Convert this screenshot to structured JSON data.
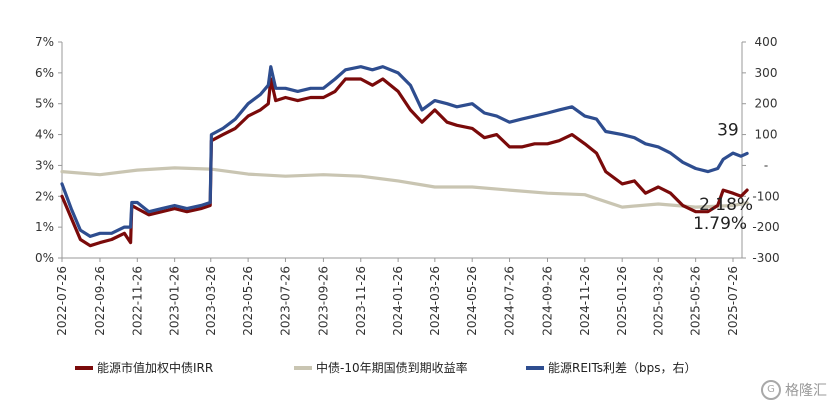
{
  "chart_data": {
    "type": "line",
    "x_ticks": [
      "2022-07-26",
      "2022-09-26",
      "2022-11-26",
      "2023-01-26",
      "2023-03-26",
      "2023-05-26",
      "2023-07-26",
      "2023-09-26",
      "2023-11-26",
      "2024-01-26",
      "2024-03-26",
      "2024-05-26",
      "2024-07-26",
      "2024-09-26",
      "2024-11-26",
      "2025-01-26",
      "2025-03-26",
      "2025-05-26",
      "2025-07-26"
    ],
    "y_left": {
      "min": 0,
      "max": 7,
      "ticks": [
        "0%",
        "1%",
        "2%",
        "3%",
        "4%",
        "5%",
        "6%",
        "7%"
      ]
    },
    "y_right": {
      "min": -300,
      "max": 400,
      "ticks": [
        "-300",
        "-200",
        "-100",
        "-",
        "100",
        "200",
        "300",
        "400"
      ]
    },
    "series": [
      {
        "name": "能源市值加权中债IRR",
        "axis": "left",
        "color": "#7a0a0a",
        "points": [
          [
            "2022-07-26",
            2.0
          ],
          [
            "2022-08-10",
            1.3
          ],
          [
            "2022-08-25",
            0.6
          ],
          [
            "2022-09-10",
            0.4
          ],
          [
            "2022-09-26",
            0.5
          ],
          [
            "2022-10-15",
            0.6
          ],
          [
            "2022-11-05",
            0.8
          ],
          [
            "2022-11-15",
            0.5
          ],
          [
            "2022-11-17",
            1.7
          ],
          [
            "2022-11-26",
            1.6
          ],
          [
            "2022-12-15",
            1.4
          ],
          [
            "2023-01-05",
            1.5
          ],
          [
            "2023-01-26",
            1.6
          ],
          [
            "2023-02-15",
            1.5
          ],
          [
            "2023-03-10",
            1.6
          ],
          [
            "2023-03-25",
            1.7
          ],
          [
            "2023-03-27",
            3.8
          ],
          [
            "2023-04-15",
            4.0
          ],
          [
            "2023-05-05",
            4.2
          ],
          [
            "2023-05-26",
            4.6
          ],
          [
            "2023-06-15",
            4.8
          ],
          [
            "2023-06-28",
            5.0
          ],
          [
            "2023-07-02",
            5.8
          ],
          [
            "2023-07-10",
            5.1
          ],
          [
            "2023-07-26",
            5.2
          ],
          [
            "2023-08-15",
            5.1
          ],
          [
            "2023-09-05",
            5.2
          ],
          [
            "2023-09-26",
            5.2
          ],
          [
            "2023-10-15",
            5.4
          ],
          [
            "2023-11-01",
            5.8
          ],
          [
            "2023-11-26",
            5.8
          ],
          [
            "2023-12-15",
            5.6
          ],
          [
            "2024-01-01",
            5.8
          ],
          [
            "2024-01-26",
            5.4
          ],
          [
            "2024-02-15",
            4.8
          ],
          [
            "2024-03-05",
            4.4
          ],
          [
            "2024-03-26",
            4.8
          ],
          [
            "2024-04-15",
            4.4
          ],
          [
            "2024-05-01",
            4.3
          ],
          [
            "2024-05-26",
            4.2
          ],
          [
            "2024-06-15",
            3.9
          ],
          [
            "2024-07-05",
            4.0
          ],
          [
            "2024-07-26",
            3.6
          ],
          [
            "2024-08-15",
            3.6
          ],
          [
            "2024-09-05",
            3.7
          ],
          [
            "2024-09-26",
            3.7
          ],
          [
            "2024-10-15",
            3.8
          ],
          [
            "2024-11-05",
            4.0
          ],
          [
            "2024-11-26",
            3.7
          ],
          [
            "2024-12-15",
            3.4
          ],
          [
            "2024-12-30",
            2.8
          ],
          [
            "2025-01-26",
            2.4
          ],
          [
            "2025-02-15",
            2.5
          ],
          [
            "2025-03-05",
            2.1
          ],
          [
            "2025-03-26",
            2.3
          ],
          [
            "2025-04-15",
            2.1
          ],
          [
            "2025-05-05",
            1.7
          ],
          [
            "2025-05-26",
            1.5
          ],
          [
            "2025-06-15",
            1.5
          ],
          [
            "2025-07-01",
            1.7
          ],
          [
            "2025-07-10",
            2.2
          ],
          [
            "2025-07-26",
            2.1
          ],
          [
            "2025-08-08",
            2.0
          ],
          [
            "2025-08-18",
            2.2
          ]
        ]
      },
      {
        "name": "中债-10年期国债到期收益率",
        "axis": "left",
        "color": "#c9c5b2",
        "points": [
          [
            "2022-07-26",
            2.8
          ],
          [
            "2022-09-26",
            2.7
          ],
          [
            "2022-11-26",
            2.85
          ],
          [
            "2023-01-26",
            2.92
          ],
          [
            "2023-03-26",
            2.88
          ],
          [
            "2023-05-26",
            2.72
          ],
          [
            "2023-07-26",
            2.65
          ],
          [
            "2023-09-26",
            2.7
          ],
          [
            "2023-11-26",
            2.65
          ],
          [
            "2024-01-26",
            2.5
          ],
          [
            "2024-03-26",
            2.3
          ],
          [
            "2024-05-26",
            2.3
          ],
          [
            "2024-07-26",
            2.2
          ],
          [
            "2024-09-26",
            2.1
          ],
          [
            "2024-11-26",
            2.05
          ],
          [
            "2025-01-26",
            1.65
          ],
          [
            "2025-03-26",
            1.75
          ],
          [
            "2025-05-26",
            1.65
          ],
          [
            "2025-07-26",
            1.7
          ],
          [
            "2025-08-18",
            1.79
          ]
        ]
      },
      {
        "name": "能源REITs利差（bps，右）",
        "axis": "right",
        "color": "#2e4d8f",
        "points": [
          [
            "2022-07-26",
            -60
          ],
          [
            "2022-08-10",
            -140
          ],
          [
            "2022-08-25",
            -210
          ],
          [
            "2022-09-10",
            -230
          ],
          [
            "2022-09-26",
            -220
          ],
          [
            "2022-10-15",
            -220
          ],
          [
            "2022-11-05",
            -200
          ],
          [
            "2022-11-15",
            -200
          ],
          [
            "2022-11-17",
            -120
          ],
          [
            "2022-11-26",
            -120
          ],
          [
            "2022-12-15",
            -150
          ],
          [
            "2023-01-05",
            -140
          ],
          [
            "2023-01-26",
            -130
          ],
          [
            "2023-02-15",
            -140
          ],
          [
            "2023-03-10",
            -130
          ],
          [
            "2023-03-25",
            -120
          ],
          [
            "2023-03-27",
            100
          ],
          [
            "2023-04-15",
            120
          ],
          [
            "2023-05-05",
            150
          ],
          [
            "2023-05-26",
            200
          ],
          [
            "2023-06-15",
            230
          ],
          [
            "2023-06-28",
            260
          ],
          [
            "2023-07-02",
            320
          ],
          [
            "2023-07-10",
            250
          ],
          [
            "2023-07-26",
            250
          ],
          [
            "2023-08-15",
            240
          ],
          [
            "2023-09-05",
            250
          ],
          [
            "2023-09-26",
            250
          ],
          [
            "2023-10-15",
            280
          ],
          [
            "2023-11-01",
            310
          ],
          [
            "2023-11-26",
            320
          ],
          [
            "2023-12-15",
            310
          ],
          [
            "2024-01-01",
            320
          ],
          [
            "2024-01-26",
            300
          ],
          [
            "2024-02-15",
            260
          ],
          [
            "2024-03-05",
            180
          ],
          [
            "2024-03-26",
            210
          ],
          [
            "2024-04-15",
            200
          ],
          [
            "2024-05-01",
            190
          ],
          [
            "2024-05-26",
            200
          ],
          [
            "2024-06-15",
            170
          ],
          [
            "2024-07-05",
            160
          ],
          [
            "2024-07-26",
            140
          ],
          [
            "2024-08-15",
            150
          ],
          [
            "2024-09-05",
            160
          ],
          [
            "2024-09-26",
            170
          ],
          [
            "2024-10-15",
            180
          ],
          [
            "2024-11-05",
            190
          ],
          [
            "2024-11-26",
            160
          ],
          [
            "2024-12-15",
            150
          ],
          [
            "2024-12-30",
            110
          ],
          [
            "2025-01-26",
            100
          ],
          [
            "2025-02-15",
            90
          ],
          [
            "2025-03-05",
            70
          ],
          [
            "2025-03-26",
            60
          ],
          [
            "2025-04-15",
            40
          ],
          [
            "2025-05-05",
            10
          ],
          [
            "2025-05-26",
            -10
          ],
          [
            "2025-06-15",
            -20
          ],
          [
            "2025-07-01",
            -10
          ],
          [
            "2025-07-10",
            20
          ],
          [
            "2025-07-26",
            40
          ],
          [
            "2025-08-08",
            30
          ],
          [
            "2025-08-18",
            39
          ]
        ]
      }
    ],
    "annotations": [
      {
        "text": "39",
        "series": 2
      },
      {
        "text": "2.18%",
        "series": 0
      },
      {
        "text": "1.79%",
        "series": 1
      }
    ],
    "grid": false,
    "legend_position": "bottom"
  },
  "watermark": {
    "text": "格隆汇",
    "icon": "G"
  }
}
